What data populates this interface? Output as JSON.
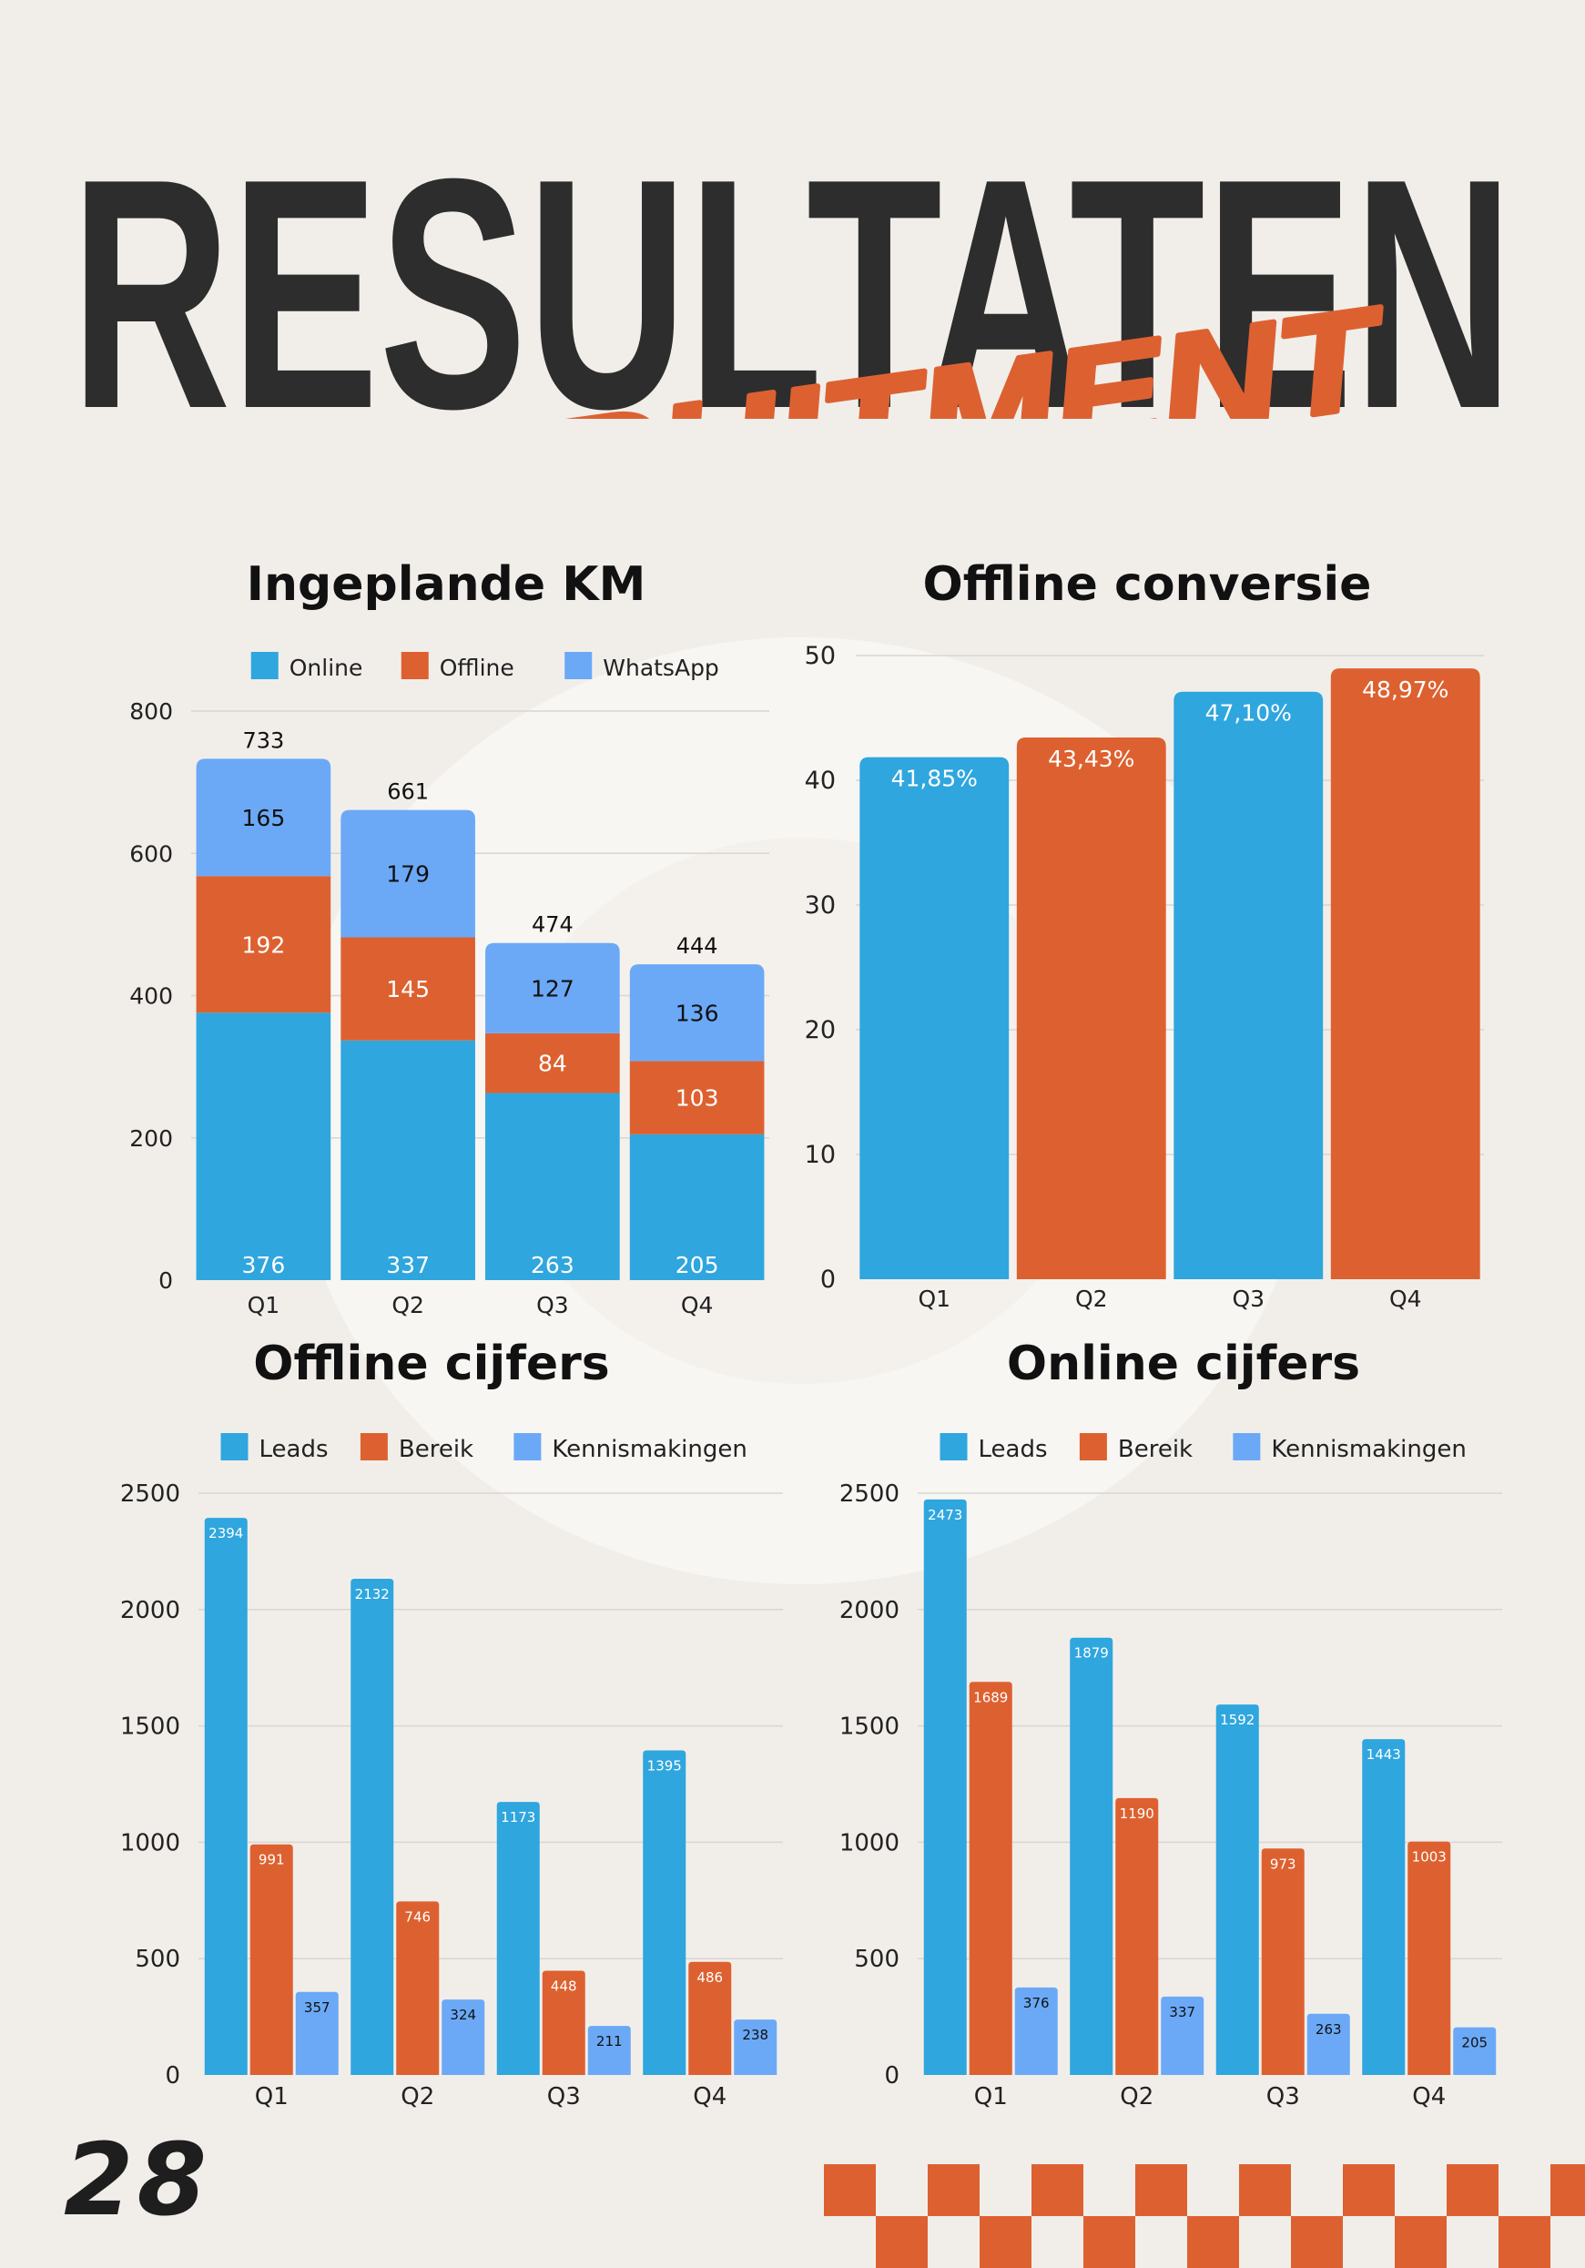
{
  "page": {
    "title": "RESULTATEN",
    "subtitle": "RECRUITMENT",
    "page_number": "28"
  },
  "colors": {
    "background": "#f1eeea",
    "dark": "#2d2d2d",
    "orange": "#dd6130",
    "blue": "#2fa6de",
    "light_blue": "#6ba9f6",
    "grid": "#d9d6d2"
  },
  "chart_data": [
    {
      "id": "ingeplande-km",
      "type": "bar",
      "stacked": true,
      "title": "Ingeplande KM",
      "categories": [
        "Q1",
        "Q2",
        "Q3",
        "Q4"
      ],
      "series": [
        {
          "name": "Online",
          "values": [
            376,
            337,
            263,
            205
          ],
          "color": "#2fa6de"
        },
        {
          "name": "Offline",
          "values": [
            192,
            145,
            84,
            103
          ],
          "color": "#dd6130"
        },
        {
          "name": "WhatsApp",
          "values": [
            165,
            179,
            127,
            136
          ],
          "color": "#6ba9f6"
        }
      ],
      "totals": [
        733,
        661,
        474,
        444
      ],
      "ylim": [
        0,
        800
      ],
      "yticks": [
        0,
        200,
        400,
        600,
        800
      ],
      "legend": "top",
      "grid": true
    },
    {
      "id": "offline-conversie",
      "type": "bar",
      "title": "Offline conversie",
      "categories": [
        "Q1",
        "Q2",
        "Q3",
        "Q4"
      ],
      "values": [
        41.85,
        43.43,
        47.1,
        48.97
      ],
      "value_labels": [
        "41,85%",
        "43,43%",
        "47,10%",
        "48,97%"
      ],
      "bar_colors": [
        "#2fa6de",
        "#dd6130",
        "#2fa6de",
        "#dd6130"
      ],
      "ylim": [
        0,
        50
      ],
      "yticks": [
        0,
        10,
        20,
        30,
        40,
        50
      ],
      "grid": true
    },
    {
      "id": "offline-cijfers",
      "type": "bar",
      "title": "Offline cijfers",
      "categories": [
        "Q1",
        "Q2",
        "Q3",
        "Q4"
      ],
      "series": [
        {
          "name": "Leads",
          "values": [
            2394,
            2132,
            1173,
            1395
          ],
          "color": "#2fa6de"
        },
        {
          "name": "Bereik",
          "values": [
            991,
            746,
            448,
            486
          ],
          "color": "#dd6130"
        },
        {
          "name": "Kennismakingen",
          "values": [
            357,
            324,
            211,
            238
          ],
          "color": "#6ba9f6"
        }
      ],
      "ylim": [
        0,
        2500
      ],
      "yticks": [
        0,
        500,
        1000,
        1500,
        2000,
        2500
      ],
      "legend": "top",
      "grid": true
    },
    {
      "id": "online-cijfers",
      "type": "bar",
      "title": "Online cijfers",
      "categories": [
        "Q1",
        "Q2",
        "Q3",
        "Q4"
      ],
      "series": [
        {
          "name": "Leads",
          "values": [
            2473,
            1879,
            1592,
            1443
          ],
          "color": "#2fa6de"
        },
        {
          "name": "Bereik",
          "values": [
            1689,
            1190,
            973,
            1003
          ],
          "color": "#dd6130"
        },
        {
          "name": "Kennismakingen",
          "values": [
            376,
            337,
            263,
            205
          ],
          "color": "#6ba9f6"
        }
      ],
      "ylim": [
        0,
        2500
      ],
      "yticks": [
        0,
        500,
        1000,
        1500,
        2000,
        2500
      ],
      "legend": "top",
      "grid": true
    }
  ]
}
